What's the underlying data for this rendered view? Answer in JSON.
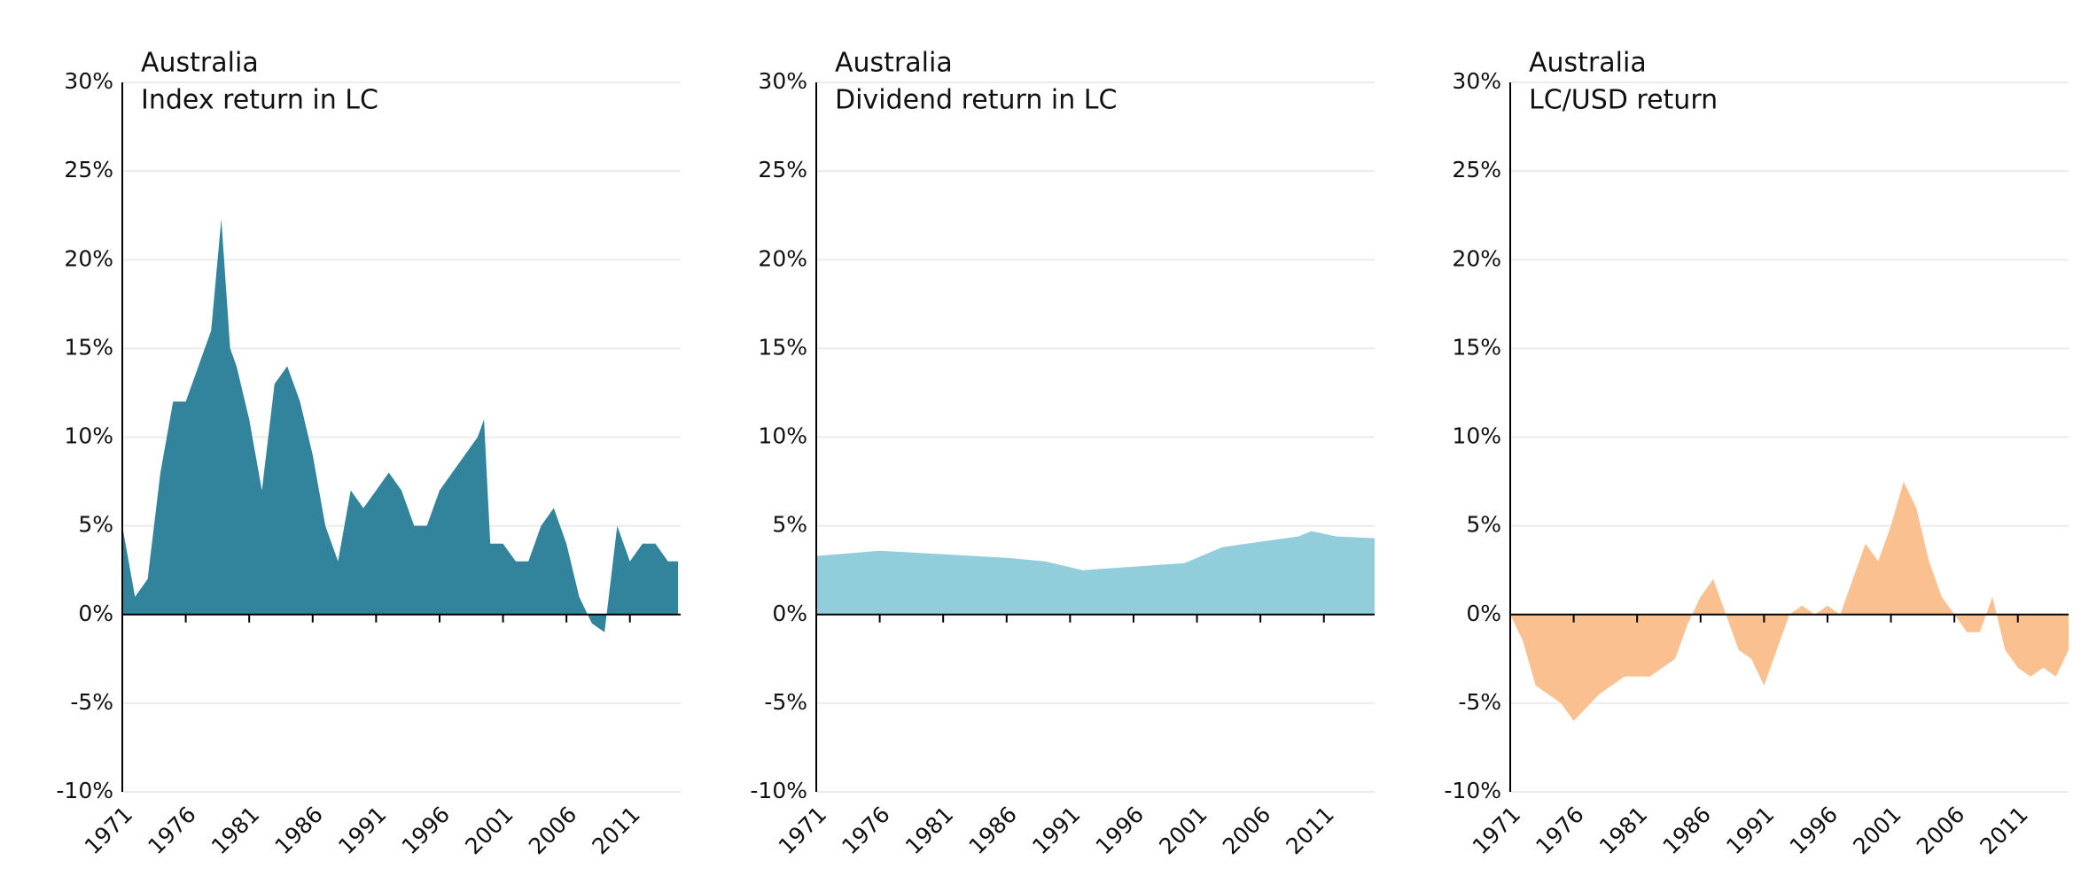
{
  "chart_data": [
    {
      "type": "area",
      "title": "Australia",
      "subtitle": "Index return in LC",
      "color": "#31849b",
      "x": [
        1971,
        1972,
        1973,
        1974,
        1975,
        1976,
        1977,
        1978,
        1978.8,
        1979.5,
        1980,
        1981,
        1982,
        1983,
        1984,
        1985,
        1986,
        1987,
        1988,
        1989,
        1990,
        1991,
        1992,
        1993,
        1994,
        1995,
        1996,
        1997,
        1998,
        1999,
        1999.5,
        2000,
        2001,
        2002,
        2003,
        2004,
        2005,
        2006,
        2007,
        2008,
        2009,
        2010,
        2011,
        2012,
        2013,
        2014,
        2014.8
      ],
      "values": [
        5,
        1,
        2,
        8,
        12,
        12,
        14,
        16,
        22.3,
        15,
        14,
        11,
        7,
        13,
        14,
        12,
        9,
        5,
        3,
        7,
        6,
        7,
        8,
        7,
        5,
        5,
        7,
        8,
        9,
        10,
        11,
        4,
        4,
        3,
        3,
        5,
        6,
        4,
        1,
        -0.5,
        -1,
        5,
        3,
        4,
        4,
        3,
        3
      ],
      "xlim": [
        1971,
        2015
      ],
      "xticks": [
        1971,
        1976,
        1981,
        1986,
        1991,
        1996,
        2001,
        2006,
        2011
      ],
      "ylim": [
        -10,
        30
      ],
      "yticks": [
        {
          "value": -10,
          "label": "-10%"
        },
        {
          "value": -5,
          "label": "-5%"
        },
        {
          "value": 0,
          "label": "0%"
        },
        {
          "value": 5,
          "label": "5%"
        },
        {
          "value": 10,
          "label": "10%"
        },
        {
          "value": 15,
          "label": "15%"
        },
        {
          "value": 20,
          "label": "20%"
        },
        {
          "value": 25,
          "label": "25%"
        },
        {
          "value": 30,
          "label": "30%"
        }
      ],
      "grid": true
    },
    {
      "type": "area",
      "title": "Australia",
      "subtitle": "Dividend return in LC",
      "color": "#92cddc",
      "x": [
        1971,
        1976,
        1981,
        1986,
        1989,
        1992,
        1996,
        2000,
        2003,
        2006,
        2009,
        2010,
        2012,
        2015
      ],
      "values": [
        3.3,
        3.6,
        3.4,
        3.2,
        3.0,
        2.5,
        2.7,
        2.9,
        3.8,
        4.1,
        4.4,
        4.7,
        4.4,
        4.3
      ],
      "xlim": [
        1971,
        2015
      ],
      "xticks": [
        1971,
        1976,
        1981,
        1986,
        1991,
        1996,
        2001,
        2006,
        2011
      ],
      "ylim": [
        -10,
        30
      ],
      "yticks": [
        {
          "value": -10,
          "label": "-10%"
        },
        {
          "value": -5,
          "label": "-5%"
        },
        {
          "value": 0,
          "label": "0%"
        },
        {
          "value": 5,
          "label": "5%"
        },
        {
          "value": 10,
          "label": "10%"
        },
        {
          "value": 15,
          "label": "15%"
        },
        {
          "value": 20,
          "label": "20%"
        },
        {
          "value": 25,
          "label": "25%"
        },
        {
          "value": 30,
          "label": "30%"
        }
      ],
      "grid": true
    },
    {
      "type": "area",
      "title": "Australia",
      "subtitle": "LC/USD return",
      "color": "#fac090",
      "x": [
        1971,
        1972,
        1973,
        1975,
        1976,
        1978,
        1980,
        1982,
        1984,
        1985,
        1986,
        1987,
        1988,
        1989,
        1990,
        1991,
        1992,
        1993,
        1994,
        1995,
        1996,
        1997,
        1998,
        1999,
        2000,
        2001,
        2002,
        2003,
        2004,
        2005,
        2006,
        2007,
        2008,
        2009,
        2010,
        2011,
        2012,
        2013,
        2014,
        2015
      ],
      "values": [
        0,
        -1.5,
        -4,
        -5,
        -6,
        -4.5,
        -3.5,
        -3.5,
        -2.5,
        -0.5,
        1,
        2,
        0,
        -2,
        -2.5,
        -4,
        -2,
        0,
        0.5,
        0,
        0.5,
        0,
        2,
        4,
        3,
        5,
        7.5,
        6,
        3,
        1,
        0,
        -1,
        -1,
        1,
        -2,
        -3,
        -3.5,
        -3,
        -3.5,
        -2
      ],
      "xlim": [
        1971,
        2015
      ],
      "xticks": [
        1971,
        1976,
        1981,
        1986,
        1991,
        1996,
        2001,
        2006,
        2011
      ],
      "ylim": [
        -10,
        30
      ],
      "yticks": [
        {
          "value": -10,
          "label": "-10%"
        },
        {
          "value": -5,
          "label": "-5%"
        },
        {
          "value": 0,
          "label": "0%"
        },
        {
          "value": 5,
          "label": "5%"
        },
        {
          "value": 10,
          "label": "10%"
        },
        {
          "value": 15,
          "label": "15%"
        },
        {
          "value": 20,
          "label": "20%"
        },
        {
          "value": 25,
          "label": "25%"
        },
        {
          "value": 30,
          "label": "30%"
        }
      ],
      "grid": true
    }
  ]
}
